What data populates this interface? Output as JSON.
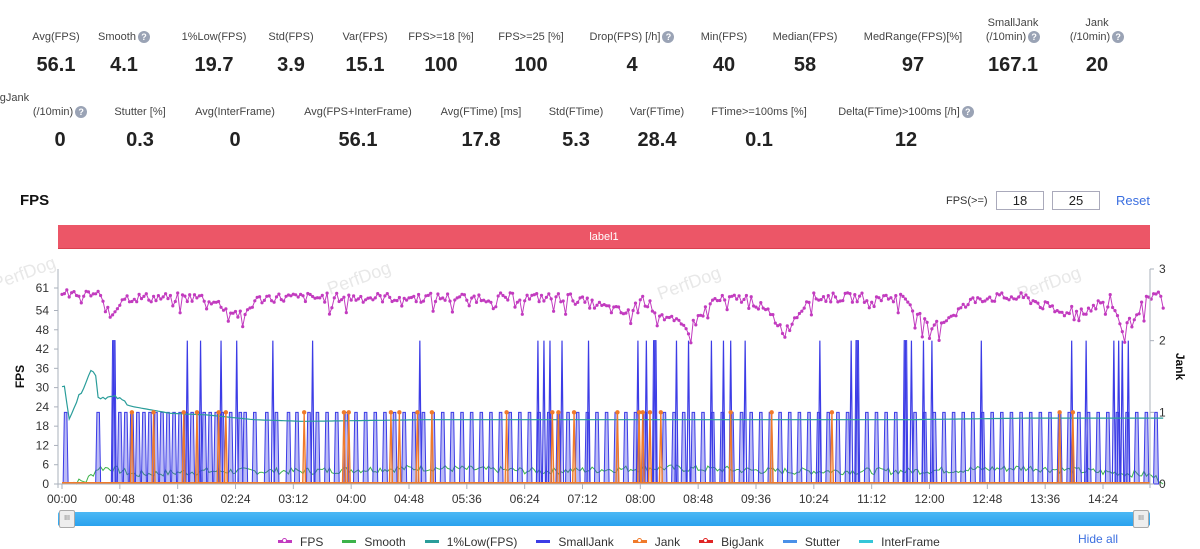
{
  "stats_row1": [
    {
      "label": "Avg(FPS)",
      "value": "56.1",
      "help": false
    },
    {
      "label": "Smooth",
      "value": "4.1",
      "help": true
    },
    {
      "label": "1%Low(FPS)",
      "value": "19.7",
      "help": false
    },
    {
      "label": "Std(FPS)",
      "value": "3.9",
      "help": false
    },
    {
      "label": "Var(FPS)",
      "value": "15.1",
      "help": false
    },
    {
      "label": "FPS>=18 [%]",
      "value": "100",
      "help": false
    },
    {
      "label": "FPS>=25 [%]",
      "value": "100",
      "help": false
    },
    {
      "label": "Drop(FPS) [/h]",
      "value": "4",
      "help": true
    },
    {
      "label": "Min(FPS)",
      "value": "40",
      "help": false
    },
    {
      "label": "Median(FPS)",
      "value": "58",
      "help": false
    },
    {
      "label": "MedRange(FPS)[%]",
      "value": "97",
      "help": false
    },
    {
      "label": "SmallJank",
      "label2": "(/10min)",
      "value": "167.1",
      "help": true
    },
    {
      "label": "Jank",
      "label2": "(/10min)",
      "value": "20",
      "help": true
    }
  ],
  "stats_row2": [
    {
      "label": "BigJank",
      "label2": "(/10min)",
      "value": "0",
      "help": true
    },
    {
      "label": "Stutter [%]",
      "value": "0.3",
      "help": false
    },
    {
      "label": "Avg(InterFrame)",
      "value": "0",
      "help": false
    },
    {
      "label": "Avg(FPS+InterFrame)",
      "value": "56.1",
      "help": false
    },
    {
      "label": "Avg(FTime) [ms]",
      "value": "17.8",
      "help": false
    },
    {
      "label": "Std(FTime)",
      "value": "5.3",
      "help": false
    },
    {
      "label": "Var(FTime)",
      "value": "28.4",
      "help": false
    },
    {
      "label": "FTime>=100ms [%]",
      "value": "0.1",
      "help": false
    },
    {
      "label": "Delta(FTime)>100ms [/h]",
      "value": "12",
      "help": true
    }
  ],
  "section": {
    "title": "FPS",
    "threshold_label": "FPS(>=)",
    "threshold_low": "18",
    "threshold_high": "25",
    "reset_label": "Reset",
    "label_bar": "label1",
    "hide_all_label": "Hide all",
    "help_glyph": "?",
    "handle_glyph": "III",
    "watermark": "PerfDog"
  },
  "colors": {
    "fps": "#c23bbf",
    "smooth": "#3cb34a",
    "low1": "#2a9d9a",
    "smalljank": "#3c3ce6",
    "jank": "#f07a2a",
    "bigjank": "#e02424",
    "stutter": "#4a90e8",
    "interframe": "#35c6d8",
    "label_bar": "#ec5667",
    "link": "#3b6fe0"
  },
  "chart_data": {
    "type": "line",
    "title": "FPS",
    "ylabel": "FPS",
    "y2label": "Jank",
    "ylim": [
      0,
      66.7
    ],
    "y2lim": [
      0,
      3
    ],
    "yticks": [
      "0",
      "6",
      "12",
      "18",
      "24",
      "30",
      "36",
      "42",
      "48",
      "54",
      "61"
    ],
    "y2ticks": [
      "0",
      "1",
      "2",
      "3"
    ],
    "xlim_seconds": [
      0,
      914
    ],
    "xticks": [
      "00:00",
      "00:48",
      "01:36",
      "02:24",
      "03:12",
      "04:00",
      "04:48",
      "05:36",
      "06:24",
      "07:12",
      "08:00",
      "08:48",
      "09:36",
      "10:24",
      "11:12",
      "12:00",
      "12:48",
      "13:36",
      "14:24"
    ],
    "legend": [
      "FPS",
      "Smooth",
      "1%Low(FPS)",
      "SmallJank",
      "Jank",
      "BigJank",
      "Stutter",
      "InterFrame"
    ],
    "legend_position": "bottom",
    "series": [
      {
        "name": "FPS",
        "axis": "left",
        "keypoints_t": [
          0,
          30,
          36,
          40,
          44,
          50,
          60,
          120,
          150,
          160,
          170,
          180,
          240,
          290,
          300,
          330,
          360,
          420,
          470,
          480,
          500,
          520,
          540,
          570,
          590,
          600,
          620,
          650,
          660,
          700,
          720,
          760,
          770,
          780,
          800,
          830,
          840,
          850,
          870,
          880,
          900,
          914
        ],
        "keypoints_v": [
          59,
          59,
          55,
          52,
          54,
          58,
          58,
          58,
          52,
          57,
          58,
          58,
          58,
          58,
          58,
          58,
          58,
          58,
          53,
          58,
          52,
          48,
          57,
          58,
          52,
          47,
          58,
          58,
          58,
          58,
          48,
          58,
          58,
          58,
          58,
          53,
          55,
          54,
          58,
          48,
          57,
          59
        ]
      },
      {
        "name": "Smooth",
        "axis": "left",
        "keypoints_t": [
          0,
          20,
          30,
          40,
          60,
          120,
          200,
          300,
          400,
          500,
          600,
          700,
          800,
          900,
          914
        ],
        "keypoints_v": [
          0,
          1,
          5,
          5,
          3,
          4,
          4,
          5,
          4,
          5,
          4,
          4,
          5,
          3,
          1
        ]
      },
      {
        "name": "1%Low(FPS)",
        "axis": "left",
        "keypoints_t": [
          0,
          3,
          5,
          15,
          25,
          28,
          30,
          45,
          60,
          90,
          120,
          160,
          200,
          300,
          400,
          500,
          600,
          700,
          800,
          914
        ],
        "keypoints_v": [
          30,
          30,
          20,
          28,
          36,
          34,
          27,
          27,
          24,
          22,
          21.5,
          20,
          19.5,
          20,
          20,
          20,
          20,
          20,
          20.5,
          20.5
        ]
      },
      {
        "name": "SmallJank",
        "axis": "right",
        "spike_times": [
          3,
          30,
          43,
          48,
          53,
          58,
          63,
          68,
          73,
          78,
          83,
          88,
          93,
          98,
          103,
          108,
          113,
          118,
          123,
          128,
          133,
          140,
          148,
          152,
          160,
          170,
          178,
          188,
          195,
          205,
          212,
          220,
          228,
          236,
          244,
          252,
          260,
          268,
          276,
          284,
          292,
          300,
          308,
          316,
          324,
          332,
          340,
          348,
          356,
          364,
          372,
          380,
          388,
          396,
          404,
          412,
          420,
          428,
          436,
          444,
          452,
          460,
          468,
          476,
          484,
          492,
          500,
          508,
          516,
          524,
          532,
          540,
          548,
          556,
          564,
          572,
          580,
          588,
          596,
          604,
          612,
          620,
          628,
          636,
          644,
          652,
          660,
          668,
          676,
          684,
          692,
          700,
          708,
          716,
          724,
          732,
          740,
          748,
          756,
          764,
          772,
          780,
          788,
          796,
          804,
          812,
          820,
          828,
          836,
          844,
          852,
          860,
          868,
          876,
          884,
          892,
          900,
          908
        ],
        "spike_values_2": [
          43,
          104,
          115,
          132,
          145,
          175,
          208,
          297,
          395,
          400,
          405,
          415,
          437,
          478,
          485,
          492,
          510,
          520,
          539,
          549,
          555,
          567,
          629,
          655,
          660,
          700,
          705,
          715,
          722,
          763,
          838,
          850,
          873,
          877,
          880,
          885
        ]
      },
      {
        "name": "Jank",
        "axis": "right",
        "spike_times": [
          58,
          76,
          101,
          112,
          130,
          136,
          201,
          234,
          238,
          273,
          280,
          295,
          307,
          369,
          407,
          412,
          425,
          461,
          479,
          482,
          488,
          497,
          555,
          589,
          639,
          828,
          839
        ]
      },
      {
        "name": "BigJank",
        "axis": "right",
        "values": "0 throughout"
      },
      {
        "name": "Stutter",
        "axis": "right",
        "values": "0 throughout"
      },
      {
        "name": "InterFrame",
        "axis": "left",
        "values": "0 throughout"
      }
    ]
  }
}
